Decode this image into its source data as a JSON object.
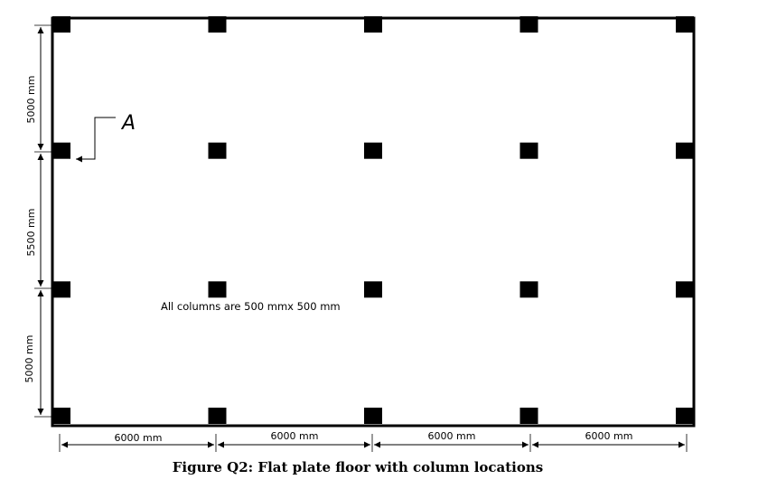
{
  "plan": {
    "bays_x_mm": [
      6000,
      6000,
      6000,
      6000
    ],
    "bays_y_mm": [
      5000,
      5500,
      5000
    ]
  },
  "labels": {
    "dims_x": [
      "6000 mm",
      "6000 mm",
      "6000 mm",
      "6000 mm"
    ],
    "dims_y": [
      "5000 mm",
      "5500 mm",
      "5000 mm"
    ],
    "marker": "A",
    "note": "All columns are 500 mmx 500 mm",
    "caption": "Figure Q2:  Flat plate floor with column locations"
  }
}
